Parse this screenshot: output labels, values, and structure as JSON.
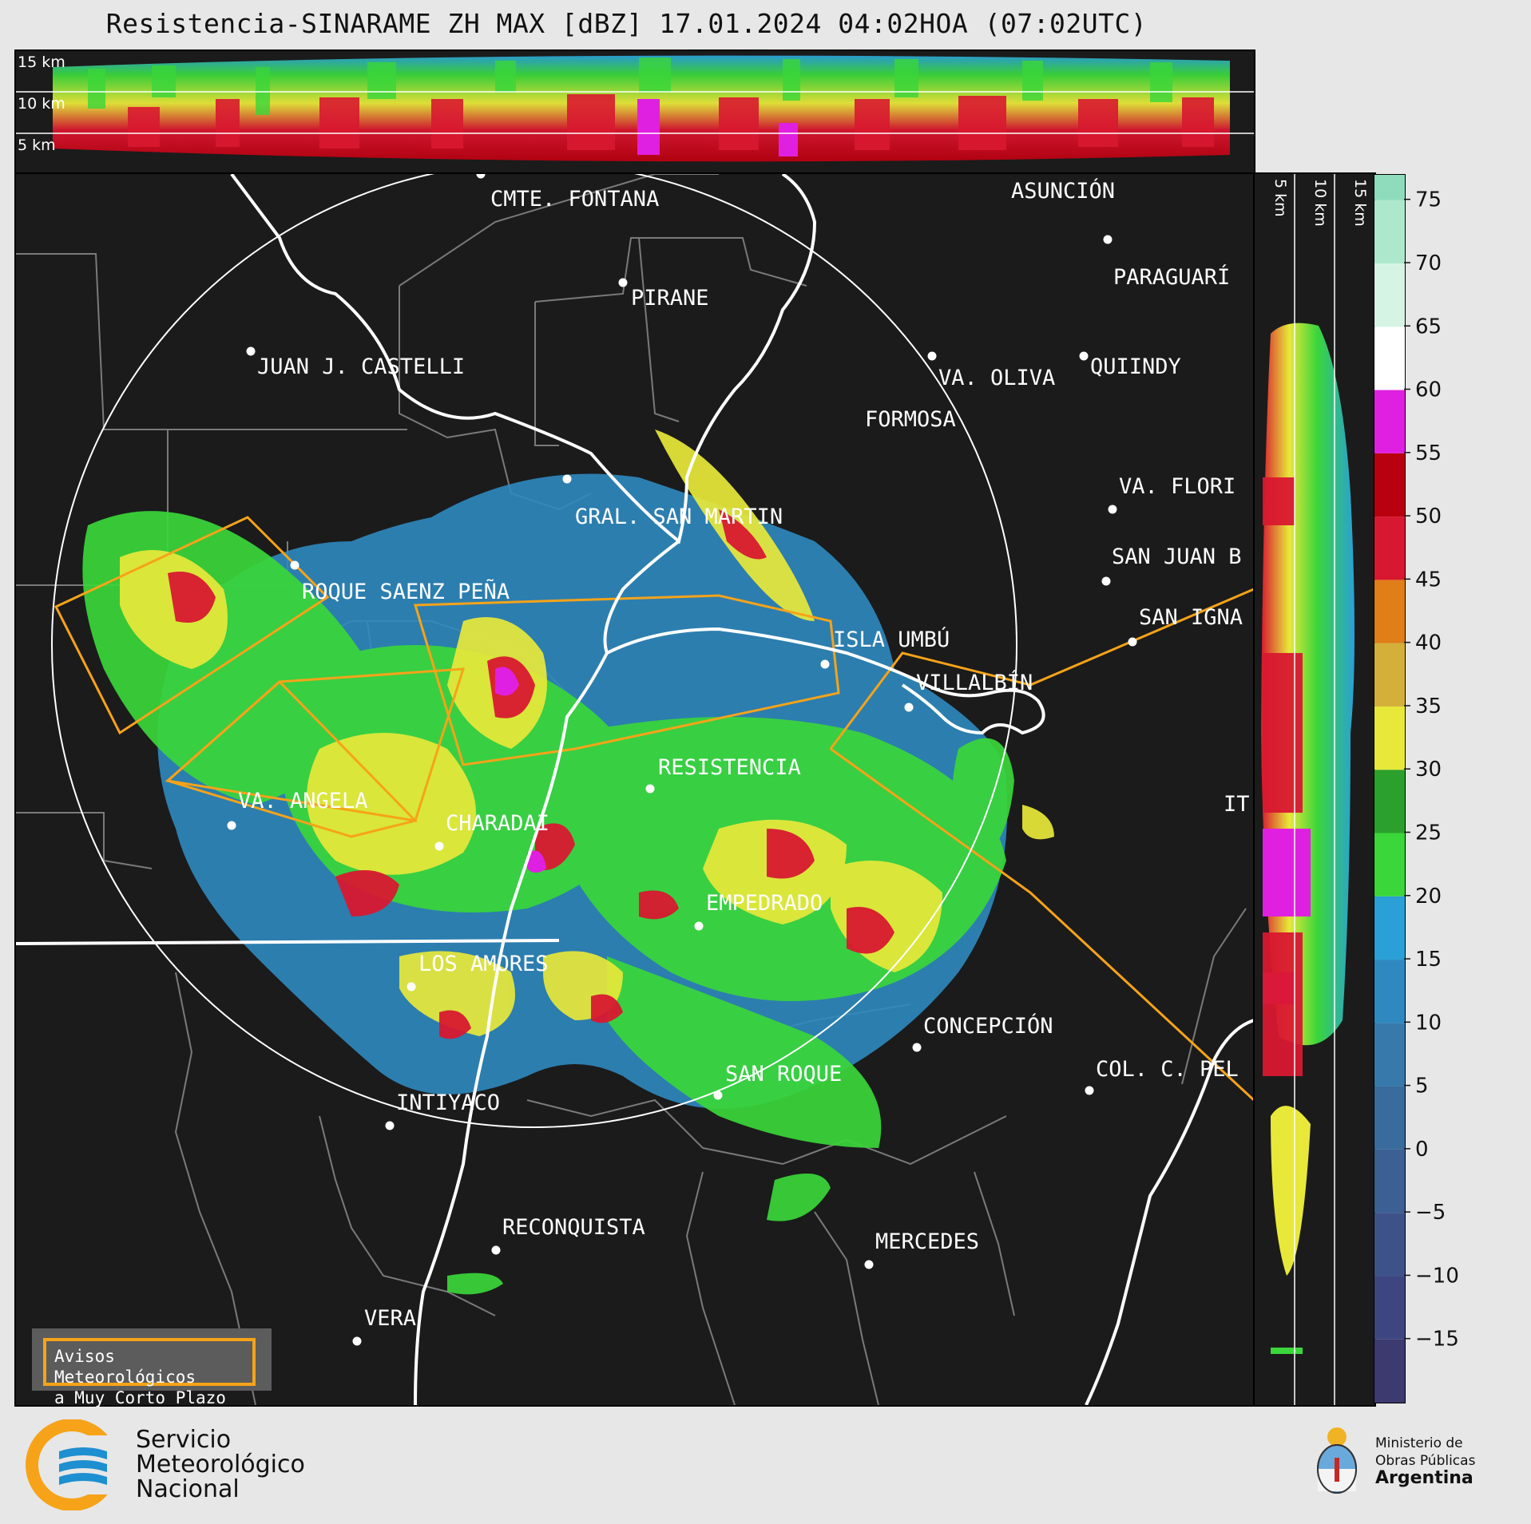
{
  "title": "Resistencia-SINARAME ZH MAX [dBZ] 17.01.2024 04:02HOA (07:02UTC)",
  "top_profile": {
    "labels": [
      "15 km",
      "10 km",
      "5 km"
    ]
  },
  "side_profile": {
    "labels": [
      "5 km",
      "10 km",
      "15 km"
    ]
  },
  "map_labels": [
    "CMTE. FONTANA",
    "ASUNCIÓN",
    "PARAGUARÍ",
    "PIRANE",
    "JUAN J. CASTELLI",
    "VA. OLIVA",
    "QUIINDY",
    "FORMOSA",
    "VA. FLORI",
    "GRAL. SAN MARTIN",
    "SAN JUAN B",
    "ROQUE SAENZ PEÑA",
    "SAN IGNA",
    "ISLA UMBÚ",
    "VILLALBÍN",
    "RESISTENCIA",
    "VA. ANGELA",
    "CHARADAI",
    "IT",
    "EMPEDRADO",
    "LOS AMORES",
    "CONCEPCIÓN",
    "SAN ROQUE",
    "COL. C. PEL",
    "INTIYACO",
    "RECONQUISTA",
    "MERCEDES",
    "VERA"
  ],
  "colorbar": {
    "unit": "dBZ",
    "ticks": [
      "75",
      "70",
      "65",
      "60",
      "55",
      "50",
      "45",
      "40",
      "35",
      "30",
      "25",
      "20",
      "15",
      "10",
      "5",
      "0",
      "−5",
      "−10",
      "−15"
    ],
    "colors": {
      "band_-20": "#3c3a6e",
      "band_-15": "#3d4680",
      "band_-10": "#3d5289",
      "band_-5": "#3c5f94",
      "band_0": "#396b9c",
      "band_5": "#3679aa",
      "band_10": "#2f89c0",
      "band_15": "#2aa0d6",
      "band_20": "#3ad63a",
      "band_25": "#2ca02c",
      "band_30": "#e8e83a",
      "band_35": "#d4b03a",
      "band_40": "#e07e18",
      "band_45": "#d81830",
      "band_50": "#b80010",
      "band_55": "#e020e0",
      "band_60": "#ffffff",
      "band_65": "#d6f4e4",
      "band_70": "#aee8cc",
      "band_75": "#8edcbc"
    }
  },
  "warning_box": {
    "line1": "Avisos Meteorológicos",
    "line2": "a Muy Corto Plazo",
    "border_color": "#f6a319"
  },
  "footer": {
    "smn_line1": "Servicio",
    "smn_line2": "Meteorológico",
    "smn_line3": "Nacional",
    "ministry_line1": "Ministerio de",
    "ministry_line2": "Obras Públicas",
    "ministry_line3": "Argentina"
  }
}
